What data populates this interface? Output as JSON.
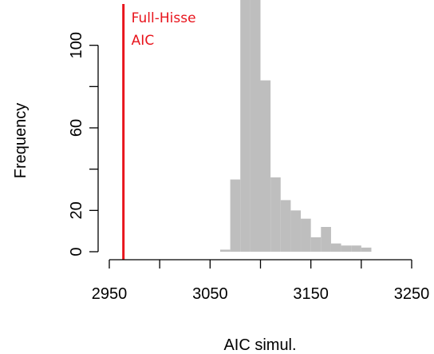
{
  "chart_data": {
    "type": "bar",
    "xlabel": "AIC simul.",
    "ylabel": "Frequency",
    "xlim": [
      2950,
      3250
    ],
    "ylim": [
      0,
      120
    ],
    "x_ticks": [
      2950,
      3000,
      3050,
      3100,
      3150,
      3200,
      3250
    ],
    "x_tick_labels": [
      "2950",
      "",
      "3050",
      "",
      "3150",
      "",
      "3250"
    ],
    "y_ticks": [
      0,
      20,
      40,
      60,
      80,
      100
    ],
    "y_tick_labels": [
      "0",
      "20",
      "",
      "60",
      "",
      "100"
    ],
    "bin_width": 10,
    "bins": [
      {
        "x0": 3060,
        "x1": 3070,
        "count": 1
      },
      {
        "x0": 3070,
        "x1": 3080,
        "count": 35
      },
      {
        "x0": 3080,
        "x1": 3090,
        "count": 127
      },
      {
        "x0": 3090,
        "x1": 3100,
        "count": 125
      },
      {
        "x0": 3100,
        "x1": 3110,
        "count": 83
      },
      {
        "x0": 3110,
        "x1": 3120,
        "count": 36
      },
      {
        "x0": 3120,
        "x1": 3130,
        "count": 25
      },
      {
        "x0": 3130,
        "x1": 3140,
        "count": 20
      },
      {
        "x0": 3140,
        "x1": 3150,
        "count": 16
      },
      {
        "x0": 3150,
        "x1": 3160,
        "count": 7
      },
      {
        "x0": 3160,
        "x1": 3170,
        "count": 12
      },
      {
        "x0": 3170,
        "x1": 3180,
        "count": 4
      },
      {
        "x0": 3180,
        "x1": 3190,
        "count": 3
      },
      {
        "x0": 3190,
        "x1": 3200,
        "count": 3
      },
      {
        "x0": 3200,
        "x1": 3210,
        "count": 2
      }
    ],
    "bar_color": "#bebebe",
    "reference_line": {
      "x": 2964,
      "color": "#e8141c",
      "label_lines": [
        "Full-Hisse",
        "AIC"
      ]
    },
    "grid": false
  }
}
